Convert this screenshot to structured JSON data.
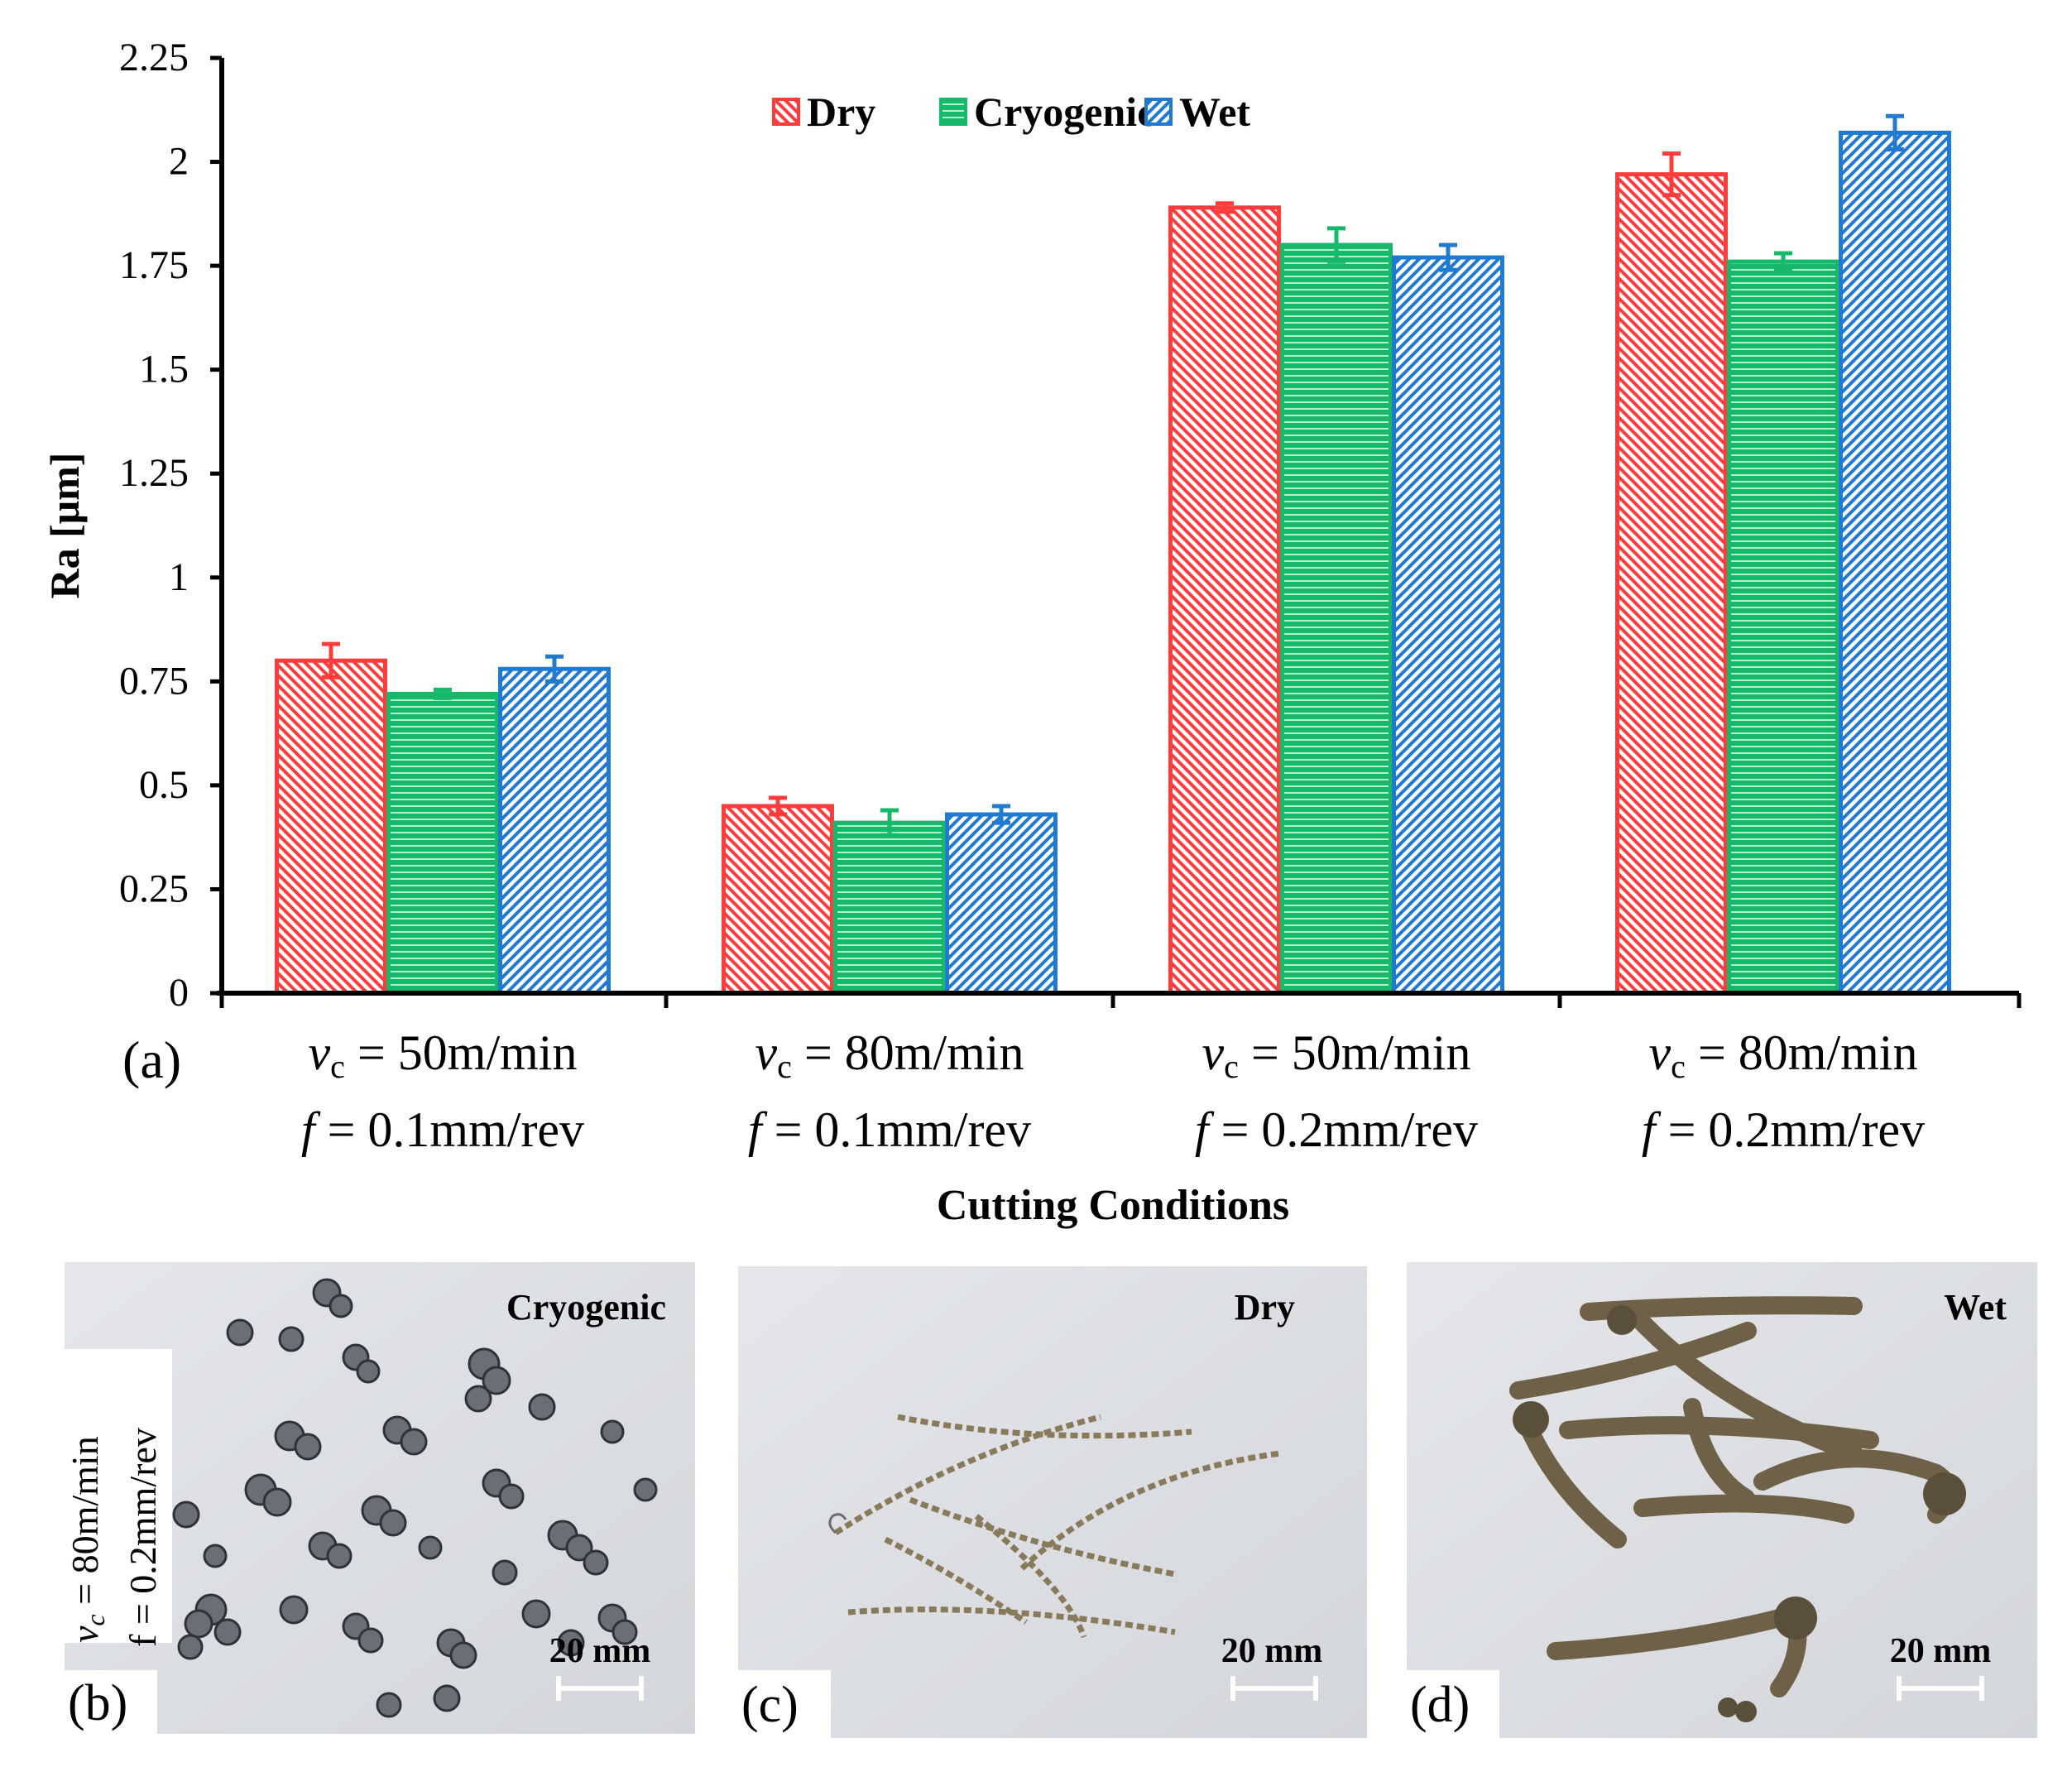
{
  "chart_data": {
    "type": "bar",
    "panel_label": "(a)",
    "title": "",
    "xlabel": "Cutting Conditions",
    "ylabel": "Ra [μm]",
    "ylim": [
      0,
      2.25
    ],
    "yticks": [
      "0",
      "0.25",
      "0.5",
      "0.75",
      "1",
      "1.25",
      "1.5",
      "1.75",
      "2",
      "2.25"
    ],
    "grid": false,
    "legend_position": "top-center",
    "categories": [
      {
        "vc_symbol": "v",
        "vc_sub": "c",
        "vc_text": " = 50m/min",
        "f_symbol": "f",
        "f_text": " = 0.1mm/rev"
      },
      {
        "vc_symbol": "v",
        "vc_sub": "c",
        "vc_text": " = 80m/min",
        "f_symbol": "f",
        "f_text": " = 0.1mm/rev"
      },
      {
        "vc_symbol": "v",
        "vc_sub": "c",
        "vc_text": " = 50m/min",
        "f_symbol": "f",
        "f_text": " = 0.2mm/rev"
      },
      {
        "vc_symbol": "v",
        "vc_sub": "c",
        "vc_text": " = 80m/min",
        "f_symbol": "f",
        "f_text": " = 0.2mm/rev"
      }
    ],
    "series": [
      {
        "name": "Dry",
        "color": "#ff3c3c",
        "pattern": "diagonal-back",
        "values": [
          0.8,
          0.45,
          1.89,
          1.97
        ],
        "errors": [
          0.04,
          0.02,
          0.01,
          0.05
        ]
      },
      {
        "name": "Cryogenic",
        "color": "#16b86a",
        "pattern": "horizontal",
        "values": [
          0.72,
          0.41,
          1.8,
          1.76
        ],
        "errors": [
          0.01,
          0.03,
          0.04,
          0.02
        ]
      },
      {
        "name": "Wet",
        "color": "#1f7ad0",
        "pattern": "diagonal-forward",
        "values": [
          0.78,
          0.43,
          1.77,
          2.07
        ],
        "errors": [
          0.03,
          0.02,
          0.03,
          0.04
        ]
      }
    ]
  },
  "photos": [
    {
      "panel_label": "(b)",
      "condition": "Cryogenic",
      "scale_bar": "20 mm",
      "side_vc_symbol": "v",
      "side_vc_sub": "c",
      "side_vc_text": " = 80m/min",
      "side_f_text": "f = 0.2mm/rev"
    },
    {
      "panel_label": "(c)",
      "condition": "Dry",
      "scale_bar": "20 mm"
    },
    {
      "panel_label": "(d)",
      "condition": "Wet",
      "scale_bar": "20 mm"
    }
  ]
}
